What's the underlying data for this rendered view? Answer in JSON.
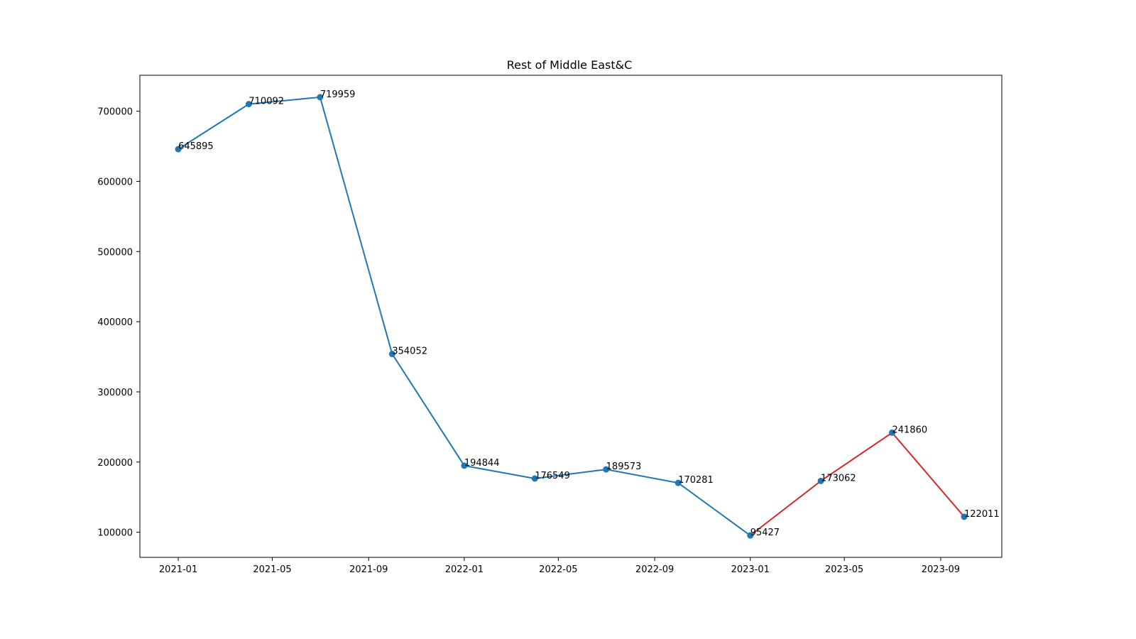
{
  "chart_data": {
    "type": "line",
    "title": "Rest of Middle East&C",
    "xlabel": "",
    "ylabel": "",
    "x": [
      "2021-01-01",
      "2021-04-01",
      "2021-07-01",
      "2021-10-01",
      "2022-01-01",
      "2022-04-01",
      "2022-07-01",
      "2022-10-01",
      "2023-01-01",
      "2023-04-01",
      "2023-07-01",
      "2023-10-01"
    ],
    "values": [
      645895,
      710092,
      719959,
      354052,
      194844,
      176549,
      189573,
      170281,
      95427,
      173062,
      241860,
      122011
    ],
    "series": [
      {
        "color": "#1f77b4",
        "start_index": 0,
        "end_index": 8
      },
      {
        "color": "#d62728",
        "start_index": 8,
        "end_index": 11
      }
    ],
    "marker_color": "#1f77b4",
    "x_ticks": [
      "2021-01",
      "2021-05",
      "2021-09",
      "2022-01",
      "2022-05",
      "2022-09",
      "2023-01",
      "2023-05",
      "2023-09"
    ],
    "y_ticks": [
      100000,
      200000,
      300000,
      400000,
      500000,
      600000,
      700000
    ],
    "xlim": [
      "2020-11-13",
      "2023-11-18"
    ],
    "ylim": [
      64200,
      751200
    ],
    "grid": false,
    "legend": null
  }
}
